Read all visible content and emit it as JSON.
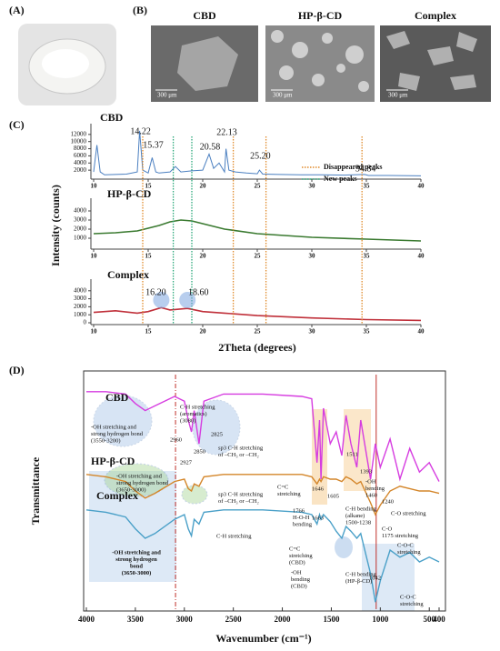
{
  "panel_labels": [
    "(A)",
    "(B)",
    "(C)",
    "(D)"
  ],
  "panel_b": {
    "titles": [
      "CBD",
      "HP-β-CD",
      "Complex"
    ],
    "scale_bar": "300 μm"
  },
  "chart_data": [
    {
      "type": "line",
      "title": "CBD",
      "color": "#4a7fc0",
      "ylabel": "Intensity (counts)",
      "x": [
        10,
        10.3,
        10.6,
        11,
        12,
        13,
        14,
        14.22,
        14.5,
        15,
        15.37,
        15.7,
        16,
        17,
        17.5,
        18,
        19,
        20,
        20.58,
        21,
        21.5,
        22,
        22.13,
        22.4,
        23,
        24,
        25,
        25.2,
        25.5,
        27,
        29,
        31,
        33,
        34.84,
        35.2,
        37,
        40
      ],
      "values": [
        1500,
        9000,
        1500,
        700,
        800,
        900,
        1500,
        13000,
        2000,
        1200,
        5500,
        1500,
        1200,
        1500,
        3000,
        1500,
        1800,
        2000,
        6500,
        2500,
        4000,
        1500,
        8000,
        2000,
        1500,
        1200,
        1000,
        2000,
        900,
        800,
        700,
        700,
        600,
        800,
        500,
        500,
        400
      ],
      "xlim": [
        10,
        40
      ],
      "ylim": [
        0,
        14000
      ],
      "xticks": [
        10,
        15,
        20,
        25,
        30,
        35,
        40
      ],
      "yticks": [
        2000,
        4000,
        6000,
        8000,
        10000,
        12000
      ],
      "peak_labels": [
        14.22,
        15.37,
        20.58,
        22.13,
        {
          "value": 25.2,
          "label": "25.20"
        },
        34.84
      ],
      "reference_lines": [
        {
          "name": "Disappeared peaks",
          "color": "#e08a2a",
          "values": [
            14.5,
            22.8,
            25.8,
            34.6
          ]
        },
        {
          "name": "New peaks",
          "color": "#2aa87a",
          "values": [
            17.3,
            19.0
          ]
        }
      ]
    },
    {
      "type": "line",
      "title": "HP-β-CD",
      "color": "#3a7a30",
      "x": [
        10,
        12,
        14,
        16,
        17,
        18,
        19,
        20,
        22,
        25,
        30,
        35,
        40
      ],
      "values": [
        1500,
        1600,
        1800,
        2400,
        2800,
        3000,
        2900,
        2600,
        2000,
        1500,
        1100,
        900,
        700
      ],
      "xlim": [
        10,
        40
      ],
      "ylim": [
        0,
        5000
      ],
      "xticks": [
        10,
        15,
        20,
        25,
        30,
        35,
        40
      ],
      "yticks": [
        1000,
        2000,
        3000,
        4000
      ]
    },
    {
      "type": "line",
      "title": "Complex",
      "color": "#c0303a",
      "xlabel": "2Theta (degrees)",
      "x": [
        10,
        12,
        14,
        15,
        16.2,
        17,
        18.6,
        20,
        22,
        25,
        30,
        35,
        40
      ],
      "values": [
        1300,
        1500,
        1200,
        1400,
        1900,
        1600,
        1800,
        1400,
        1200,
        900,
        600,
        400,
        300
      ],
      "xlim": [
        10,
        40
      ],
      "ylim": [
        0,
        5000
      ],
      "xticks": [
        10,
        15,
        20,
        25,
        30,
        35,
        40
      ],
      "yticks": [
        0,
        1000,
        2000,
        3000,
        4000
      ],
      "peak_labels": [
        {
          "value": 16.2,
          "label": "16.20"
        },
        {
          "value": 18.6,
          "label": "18.60"
        }
      ]
    },
    {
      "type": "line",
      "xlabel": "Wavenumber (cm⁻¹)",
      "ylabel": "Transmittance",
      "x": [
        4000,
        3800,
        3600,
        3500,
        3400,
        3300,
        3100,
        3000,
        2960,
        2927,
        2900,
        2850,
        2800,
        2600,
        2200,
        1800,
        1700,
        1646,
        1620,
        1605,
        1580,
        1511,
        1450,
        1393,
        1350,
        1300,
        1240,
        1200,
        1100,
        1050,
        1000,
        900,
        800,
        700,
        600,
        500,
        400
      ],
      "series": [
        {
          "name": "CBD",
          "color": "#d63ce0",
          "values": [
            92,
            92,
            91,
            87,
            84,
            86,
            90,
            88,
            80,
            75,
            84,
            70,
            88,
            91,
            91,
            90,
            89,
            62,
            80,
            55,
            85,
            70,
            75,
            65,
            82,
            70,
            60,
            80,
            55,
            70,
            60,
            72,
            55,
            68,
            58,
            62,
            54
          ]
        },
        {
          "name": "HP-β-CD",
          "color": "#d4862a",
          "values": [
            57,
            56,
            54,
            50,
            47,
            49,
            54,
            55,
            51,
            50,
            53,
            52,
            56,
            57,
            57,
            57,
            56,
            53,
            55,
            54,
            56,
            55,
            55,
            54,
            56,
            55,
            53,
            54,
            45,
            40,
            44,
            50,
            52,
            51,
            50,
            50,
            49
          ]
        },
        {
          "name": "Complex",
          "color": "#4aa0c8",
          "values": [
            42,
            41,
            39,
            34,
            30,
            32,
            38,
            40,
            34,
            31,
            38,
            36,
            41,
            42,
            42,
            41,
            40,
            36,
            40,
            38,
            40,
            37,
            33,
            30,
            35,
            33,
            30,
            32,
            15,
            3,
            12,
            25,
            22,
            24,
            20,
            22,
            20
          ]
        }
      ],
      "xlim": [
        4000,
        400
      ],
      "ylim": [
        0,
        100
      ],
      "xticks": [
        4000,
        3500,
        3000,
        2500,
        2000,
        1500,
        1000,
        500,
        400
      ],
      "marker_lines": [
        3090,
        1042
      ],
      "annotations": [
        [
          "-OH stretching and",
          "strong hydrogen bond",
          "(3550-3200)"
        ],
        [
          "C-H stretching",
          "(aromatics)",
          "(3080)"
        ],
        [
          "2960"
        ],
        [
          "2825"
        ],
        [
          "2850"
        ],
        [
          "2927"
        ],
        [
          "sp3 C-H stretching",
          "of –CH₃ or –CH₂"
        ],
        [
          "-OH stretching and",
          "strong hydrogen bond",
          "(3650-3000)"
        ],
        [
          "sp3 C-H stretching",
          "of –CH₃ or –CH₂"
        ],
        [
          "C-H stretching"
        ],
        [
          "-OH stretching and",
          "strong hydrogen",
          "bond",
          "(3650-3000)"
        ],
        [
          "1646"
        ],
        [
          "1605"
        ],
        [
          "1511"
        ],
        [
          "1393"
        ],
        [
          "-OH",
          "bending",
          "1460"
        ],
        [
          "1240"
        ],
        [
          "C=C",
          "stretching"
        ],
        [
          "C-O stretching"
        ],
        [
          "1766",
          "H-O-H",
          "bending"
        ],
        [
          "1663"
        ],
        [
          "C-H bending",
          "(alkane)",
          "1500-1238"
        ],
        [
          "C-O",
          "1175 stretching"
        ],
        [
          "C=C",
          "stretching",
          "(CBD)"
        ],
        [
          "-OH",
          "bending",
          "(CBD)"
        ],
        [
          "C-H bending",
          "(HP-β-CD)"
        ],
        [
          "C-O-C",
          "stretching"
        ],
        [
          "1042"
        ],
        [
          "C-O-C",
          "stretching"
        ]
      ]
    }
  ]
}
